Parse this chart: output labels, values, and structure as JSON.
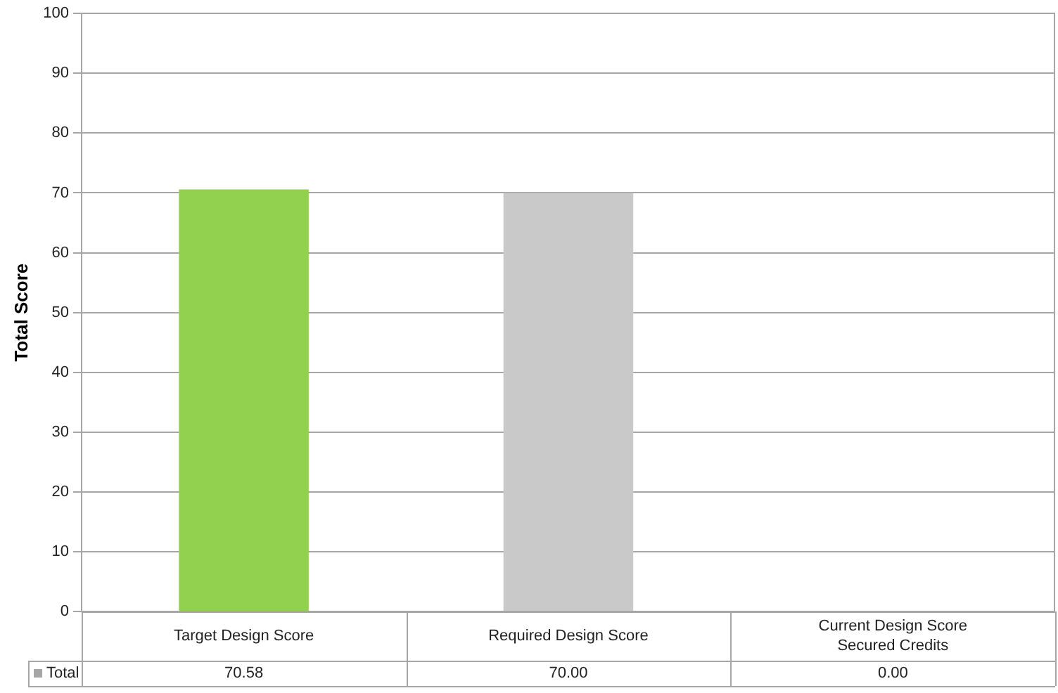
{
  "chart_data": {
    "type": "bar",
    "ylabel": "Total Score",
    "categories": [
      "Target Design Score",
      "Required Design Score",
      "Current Design Score\nSecured Credits"
    ],
    "series": [
      {
        "name": "Total",
        "color": "#a6a6a6",
        "colors": [
          "#92d050",
          "#c9c9c9",
          "#a6a6a6"
        ],
        "values": [
          70.58,
          70.0,
          0.0
        ],
        "value_labels": [
          "70.58",
          "70.00",
          "0.00"
        ]
      }
    ],
    "ylim": [
      0,
      100
    ],
    "yticks": [
      0,
      10,
      20,
      30,
      40,
      50,
      60,
      70,
      80,
      90,
      100
    ],
    "grid": "y",
    "legend": false
  }
}
